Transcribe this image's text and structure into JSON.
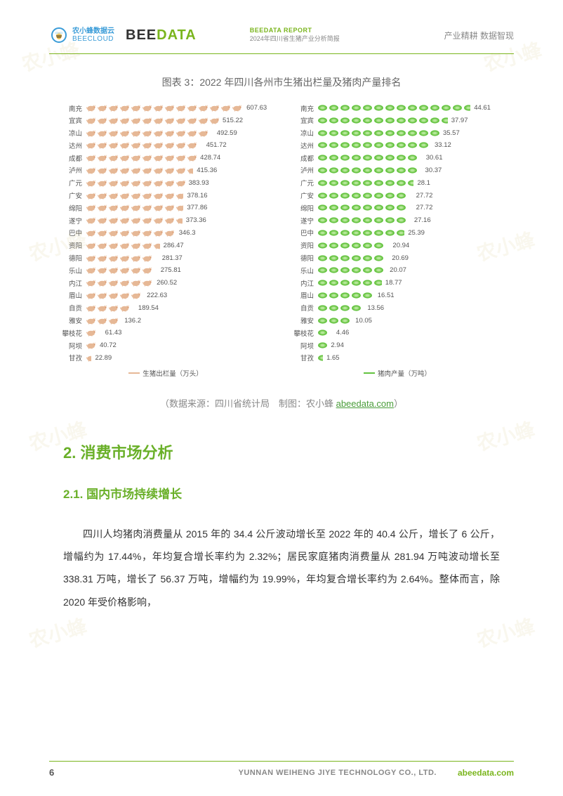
{
  "header": {
    "beecloud_cn": "农小蜂数据云",
    "beecloud_en": "BEECLOUD",
    "beedata_bee": "BEE",
    "beedata_data": "DATA",
    "mid_top": "BEEDATA REPORT",
    "mid_bot": "2024年四川省生猪产业分析简报",
    "right": "产业精耕 数据智现"
  },
  "chart": {
    "title": "图表 3：2022 年四川各州市生猪出栏量及猪肉产量排名",
    "left_legend": "生猪出栏量（万头）",
    "right_legend": "猪肉产量（万吨）",
    "left_max": 610,
    "right_max": 46,
    "pig_color": "#e6b896",
    "meat_color": "#63c33f",
    "label_color": "#555555",
    "label_fontsize": 9.5,
    "categories": [
      "南充",
      "宜宾",
      "凉山",
      "达州",
      "成都",
      "泸州",
      "广元",
      "广安",
      "绵阳",
      "遂宁",
      "巴中",
      "资阳",
      "德阳",
      "乐山",
      "内江",
      "眉山",
      "自贡",
      "雅安",
      "攀枝花",
      "阿坝",
      "甘孜"
    ],
    "left_values": [
      607.63,
      515.22,
      492.59,
      451.72,
      428.74,
      415.36,
      383.93,
      378.16,
      377.86,
      373.36,
      346.3,
      286.47,
      281.37,
      275.81,
      260.52,
      222.63,
      189.54,
      136.2,
      61.43,
      40.72,
      22.89
    ],
    "right_values": [
      44.61,
      37.97,
      35.57,
      33.12,
      30.61,
      30.37,
      28.1,
      27.72,
      27.72,
      27.16,
      25.39,
      20.94,
      20.69,
      20.07,
      18.77,
      16.51,
      13.56,
      10.05,
      4.46,
      2.94,
      1.65
    ]
  },
  "source": {
    "prefix": "（数据来源：四川省统计局　制图：农小蜂 ",
    "link": "abeedata.com",
    "suffix": "）"
  },
  "section": {
    "h1": "2. 消费市场分析",
    "h2": "2.1. 国内市场持续增长",
    "body": "四川人均猪肉消费量从 2015 年的 34.4 公斤波动增长至 2022 年的 40.4 公斤，增长了 6 公斤，增幅约为 17.44%，年均复合增长率约为 2.32%；居民家庭猪肉消费量从 281.94 万吨波动增长至 338.31 万吨，增长了 56.37 万吨，增幅约为 19.99%，年均复合增长率约为 2.64%。整体而言，除 2020 年受价格影响，"
  },
  "footer": {
    "page": "6",
    "company": "YUNNAN WEIHENG JIYE TECHNOLOGY CO., LTD.",
    "domain": "abeedata.com"
  },
  "watermark_text": "农小蜂 BEEDATA"
}
